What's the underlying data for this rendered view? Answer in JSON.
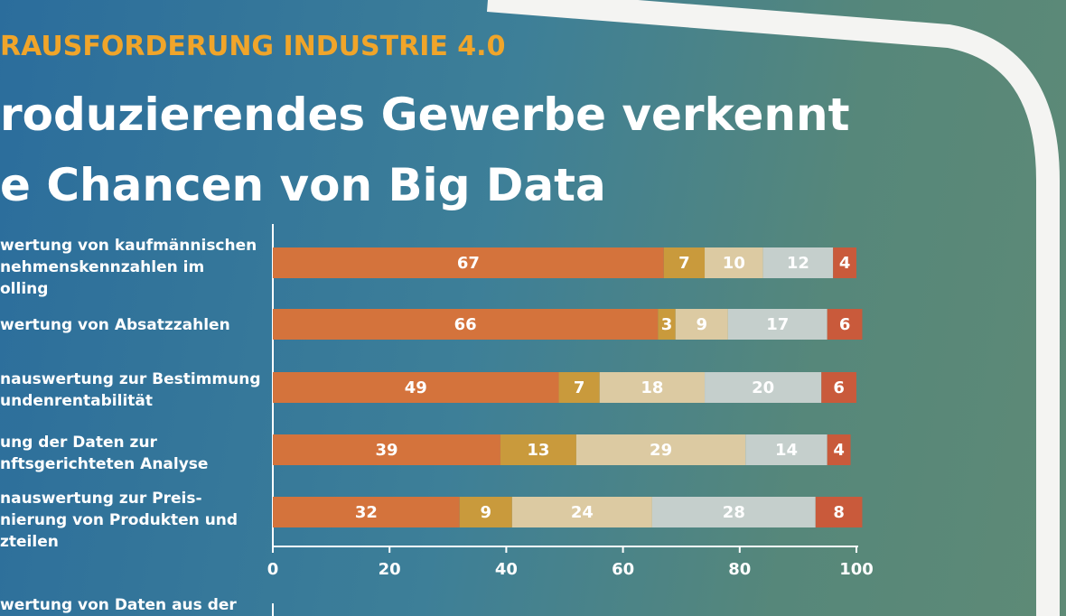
{
  "chart_data": {
    "type": "stacked-bar-horizontal",
    "kicker": "RAUSFORDERUNG INDUSTRIE 4.0",
    "title": "roduzierendes Gewerbe verkennt\ne Chancen von Big Data",
    "categories": [
      "wertung von kaufmännischen\nnehmenskennzahlen im\nolling",
      "wertung von Absatzzahlen",
      "nauswertung zur Bestimmung\nundenrentabilität",
      "ung der Daten zur\nnftsgerichteten Analyse",
      "nauswertung zur Preis-\nnierung von Produkten und\nzteilen"
    ],
    "series": [
      {
        "color": "#d4733c",
        "values": [
          67,
          66,
          49,
          39,
          32
        ]
      },
      {
        "color": "#c99a3c",
        "values": [
          7,
          3,
          7,
          13,
          9
        ]
      },
      {
        "color": "#dccaa2",
        "values": [
          10,
          9,
          18,
          29,
          24
        ]
      },
      {
        "color": "#c5cfcc",
        "values": [
          12,
          17,
          20,
          14,
          28
        ]
      },
      {
        "color": "#c95a3b",
        "values": [
          4,
          6,
          6,
          4,
          8
        ]
      }
    ],
    "xlim": [
      0,
      100
    ],
    "xticks": [
      0,
      20,
      40,
      60,
      80,
      100
    ],
    "next_category": "wertung von Daten aus der"
  }
}
